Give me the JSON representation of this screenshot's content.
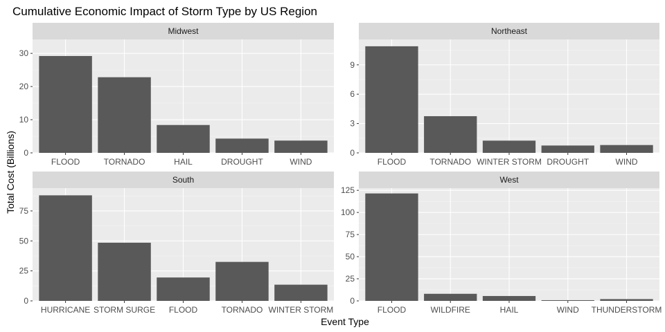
{
  "chart_data": {
    "type": "bar",
    "title": "Cumulative Economic Impact of Storm Type by US Region",
    "xlabel": "Event Type",
    "ylabel": "Total Cost (Billions)",
    "bar_color": "#595959",
    "panel_color": "#ebebeb",
    "strip_color": "#d9d9d9",
    "facets": [
      {
        "name": "Midwest",
        "categories": [
          "FLOOD",
          "TORNADO",
          "HAIL",
          "DROUGHT",
          "WIND"
        ],
        "values": [
          29.2,
          22.8,
          8.4,
          4.3,
          3.7
        ],
        "ylim": [
          0,
          34.2
        ],
        "yticks": [
          0,
          10,
          20,
          30
        ]
      },
      {
        "name": "Northeast",
        "categories": [
          "FLOOD",
          "TORNADO",
          "WINTER STORM",
          "DROUGHT",
          "WIND"
        ],
        "values": [
          10.9,
          3.75,
          1.25,
          0.75,
          0.8
        ],
        "ylim": [
          0,
          11.6
        ],
        "yticks": [
          0,
          3,
          6,
          9
        ]
      },
      {
        "name": "South",
        "categories": [
          "HURRICANE",
          "STORM SURGE",
          "FLOOD",
          "TORNADO",
          "WINTER STORM"
        ],
        "values": [
          88,
          48.5,
          19.5,
          32.5,
          13.5
        ],
        "ylim": [
          0,
          94
        ],
        "yticks": [
          0,
          25,
          50,
          75
        ]
      },
      {
        "name": "West",
        "categories": [
          "FLOOD",
          "WILDFIRE",
          "HAIL",
          "WIND",
          "THUNDERSTORM"
        ],
        "values": [
          121.5,
          8,
          5.5,
          0.8,
          2
        ],
        "ylim": [
          0,
          127.5
        ],
        "yticks": [
          0,
          25,
          50,
          75,
          100,
          125
        ]
      }
    ]
  }
}
